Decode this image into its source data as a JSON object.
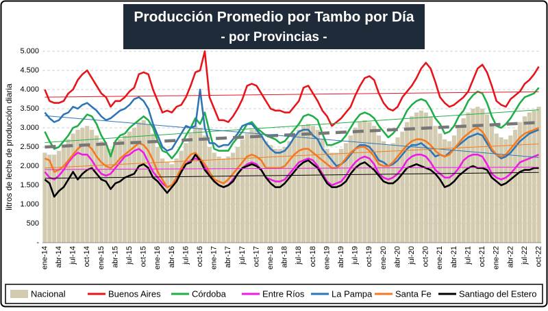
{
  "chart_data": {
    "type": "combo",
    "title": "Producción Promedio por Tambo por Día",
    "subtitle": "- por Provincias -",
    "y_label": "litros de leche de producción diaria",
    "ylim": [
      0,
      5000
    ],
    "yticks": [
      {
        "value": 0,
        "label": "-"
      },
      {
        "value": 500,
        "label": "500"
      },
      {
        "value": 1000,
        "label": "1.000"
      },
      {
        "value": 1500,
        "label": "1.500"
      },
      {
        "value": 2000,
        "label": "2.000"
      },
      {
        "value": 2500,
        "label": "2.500"
      },
      {
        "value": 3000,
        "label": "3.000"
      },
      {
        "value": 3500,
        "label": "3.500"
      },
      {
        "value": 4000,
        "label": "4.000"
      },
      {
        "value": 4500,
        "label": "4.500"
      },
      {
        "value": 5000,
        "label": "5.000"
      }
    ],
    "grid": true,
    "trendlines": true,
    "legend": "bottom",
    "categories": [
      "ene-14",
      null,
      null,
      "abr-14",
      null,
      null,
      "jul-14",
      null,
      null,
      "oct-14",
      null,
      null,
      "ene-15",
      null,
      null,
      "abr-15",
      null,
      null,
      "jul-15",
      null,
      null,
      "oct-15",
      null,
      null,
      "ene-16",
      null,
      null,
      "abr-16",
      null,
      null,
      "jul-16",
      null,
      null,
      "oct-16",
      null,
      null,
      "ene-17",
      null,
      null,
      "abr-17",
      null,
      null,
      "jul-17",
      null,
      null,
      "oct-17",
      null,
      null,
      "ene-18",
      null,
      null,
      "abr-18",
      null,
      null,
      "jul-18",
      null,
      null,
      "oct-18",
      null,
      null,
      "ene-19",
      null,
      null,
      "abr-19",
      null,
      null,
      "jul-19",
      null,
      null,
      "oct-19",
      null,
      null,
      "ene-20",
      null,
      null,
      "abr-20",
      null,
      null,
      "jul-20",
      null,
      null,
      "oct-20",
      null,
      null,
      "ene-21",
      null,
      null,
      "abr-21",
      null,
      null,
      "jul-21",
      null,
      null,
      "oct-21",
      null,
      null,
      "ene-22",
      null,
      null,
      "abr-22",
      null,
      null,
      "jul-22",
      null,
      null,
      "oct-22"
    ],
    "series": [
      {
        "name": "Nacional",
        "type": "bar",
        "color": "#d3cbb0",
        "trend_color": "#777777",
        "values": [
          2350,
          2300,
          2300,
          2400,
          2550,
          2700,
          2850,
          2950,
          3000,
          3050,
          2950,
          2800,
          2650,
          2550,
          2450,
          2550,
          2700,
          2800,
          2900,
          3000,
          3150,
          3200,
          3100,
          2850,
          2500,
          2200,
          2100,
          2050,
          2200,
          2400,
          2600,
          2850,
          3050,
          3000,
          2800,
          2500,
          2350,
          2250,
          2200,
          2250,
          2350,
          2500,
          2700,
          2850,
          2950,
          2950,
          2850,
          2650,
          2550,
          2450,
          2450,
          2500,
          2650,
          2800,
          2950,
          3050,
          3100,
          3050,
          2950,
          2700,
          2450,
          2350,
          2350,
          2450,
          2600,
          2800,
          3000,
          3150,
          3200,
          3150,
          3050,
          2800,
          2650,
          2550,
          2600,
          2750,
          2900,
          3150,
          3300,
          3400,
          3450,
          3400,
          3300,
          3050,
          2850,
          2700,
          2650,
          2800,
          3000,
          3250,
          3400,
          3500,
          3550,
          3500,
          3350,
          3100,
          2850,
          2750,
          2700,
          2800,
          2950,
          3150,
          3300,
          3400,
          3450,
          3550
        ]
      },
      {
        "name": "Buenos Aires",
        "type": "line",
        "color": "#e8141b",
        "values": [
          4000,
          3700,
          3650,
          3650,
          3700,
          3900,
          4000,
          4250,
          4400,
          4500,
          4300,
          4100,
          3900,
          3800,
          3550,
          3700,
          3700,
          3800,
          3950,
          4050,
          4400,
          4450,
          4400,
          4000,
          3700,
          3400,
          3450,
          3400,
          3550,
          3600,
          3800,
          4100,
          4450,
          4500,
          5000,
          3800,
          3500,
          3200,
          3200,
          3150,
          3300,
          3500,
          3750,
          4100,
          4150,
          4100,
          3900,
          3700,
          3500,
          3450,
          3450,
          3400,
          3400,
          3550,
          3700,
          4050,
          4100,
          3900,
          3700,
          3450,
          3300,
          3050,
          3150,
          3250,
          3400,
          3550,
          3850,
          4100,
          4300,
          4350,
          4250,
          3900,
          3650,
          3500,
          3450,
          3550,
          3800,
          3950,
          4100,
          4300,
          4550,
          4700,
          4550,
          4200,
          3800,
          3650,
          3550,
          3600,
          3700,
          3800,
          3950,
          4250,
          4550,
          4650,
          4450,
          4100,
          3700,
          3600,
          3550,
          3750,
          3850,
          3950,
          4150,
          4250,
          4400,
          4600
        ]
      },
      {
        "name": "Córdoba",
        "type": "line",
        "color": "#1fae48",
        "values": [
          2900,
          2650,
          2450,
          2500,
          2650,
          2800,
          3000,
          3050,
          3200,
          3350,
          3300,
          3100,
          2800,
          2600,
          2250,
          2650,
          2800,
          2850,
          3000,
          3100,
          3200,
          3300,
          3200,
          3000,
          2650,
          2400,
          2350,
          2200,
          2350,
          2550,
          2800,
          3000,
          3250,
          3100,
          3400,
          2900,
          2450,
          2400,
          2400,
          2400,
          2600,
          2750,
          2900,
          3100,
          3150,
          3000,
          2900,
          2800,
          2750,
          2700,
          2600,
          2650,
          2800,
          2950,
          3100,
          3300,
          3350,
          3300,
          3200,
          2850,
          2550,
          2550,
          2600,
          2650,
          2800,
          3000,
          3200,
          3350,
          3400,
          3350,
          3250,
          3050,
          2900,
          2750,
          2850,
          3000,
          3200,
          3450,
          3600,
          3700,
          3750,
          3700,
          3500,
          3250,
          3100,
          2850,
          2900,
          3050,
          3300,
          3450,
          3700,
          3850,
          3950,
          3900,
          3650,
          3300,
          3050,
          3000,
          3100,
          3250,
          3450,
          3650,
          3800,
          3850,
          3900,
          4050
        ]
      },
      {
        "name": "Entre Ríos",
        "type": "line",
        "color": "#ee1be6",
        "values": [
          1850,
          1700,
          1650,
          1750,
          1900,
          2100,
          2250,
          2350,
          2300,
          2300,
          2150,
          1950,
          1800,
          1750,
          1800,
          1950,
          2100,
          2250,
          2300,
          2400,
          2450,
          2350,
          2100,
          1850,
          1700,
          1550,
          1450,
          1500,
          1650,
          1850,
          2050,
          2150,
          2200,
          2150,
          2000,
          1750,
          1600,
          1500,
          1450,
          1500,
          1650,
          1800,
          1950,
          2050,
          2100,
          2050,
          1900,
          1700,
          1650,
          1600,
          1600,
          1650,
          1800,
          1950,
          2100,
          2150,
          2200,
          2150,
          2000,
          1800,
          1600,
          1500,
          1550,
          1600,
          1750,
          1950,
          2100,
          2200,
          2250,
          2200,
          2050,
          1800,
          1700,
          1650,
          1700,
          1800,
          1950,
          2150,
          2250,
          2300,
          2300,
          2250,
          2100,
          1900,
          1800,
          1700,
          1700,
          1800,
          1950,
          2150,
          2250,
          2300,
          2300,
          2250,
          2050,
          1800,
          1700,
          1650,
          1700,
          1800,
          1950,
          2100,
          2150,
          2200,
          2250,
          2300
        ]
      },
      {
        "name": "La Pampa",
        "type": "line",
        "color": "#2e75b6",
        "values": [
          3400,
          3250,
          3150,
          3200,
          3350,
          3400,
          3550,
          3500,
          3600,
          3650,
          3550,
          3450,
          3300,
          3200,
          3250,
          3350,
          3450,
          3500,
          3600,
          3750,
          3800,
          3700,
          3500,
          3100,
          2800,
          2500,
          2400,
          2450,
          2650,
          2850,
          3050,
          3000,
          3050,
          4000,
          3000,
          2600,
          2600,
          2500,
          2550,
          2550,
          2700,
          2850,
          3050,
          3100,
          3100,
          2950,
          2800,
          2600,
          2450,
          2350,
          2350,
          2400,
          2550,
          2750,
          2900,
          2950,
          2950,
          2800,
          2700,
          2450,
          2300,
          2150,
          2000,
          2050,
          2150,
          2300,
          2450,
          2550,
          2550,
          2500,
          2350,
          2150,
          2100,
          2000,
          2050,
          2150,
          2300,
          2450,
          2550,
          2550,
          2600,
          2500,
          2400,
          2250,
          2300,
          2250,
          2350,
          2450,
          2550,
          2650,
          2750,
          2800,
          2850,
          2800,
          2600,
          2400,
          2300,
          2200,
          2250,
          2350,
          2500,
          2650,
          2750,
          2850,
          2900,
          2950
        ]
      },
      {
        "name": "Santa Fe",
        "type": "line",
        "color": "#f47a1f",
        "values": [
          2200,
          2150,
          1850,
          1900,
          2000,
          2150,
          2300,
          2450,
          2550,
          2550,
          2450,
          2250,
          2100,
          2000,
          1950,
          2050,
          2200,
          2300,
          2400,
          2500,
          2600,
          2550,
          2400,
          2150,
          1850,
          1650,
          1450,
          1500,
          1700,
          1950,
          2150,
          2300,
          2350,
          2200,
          2050,
          1850,
          1650,
          1600,
          1550,
          1650,
          1800,
          1950,
          2100,
          2250,
          2300,
          2250,
          2150,
          1950,
          1950,
          1950,
          1950,
          2000,
          2150,
          2300,
          2400,
          2450,
          2450,
          2350,
          2250,
          2150,
          2050,
          1950,
          1950,
          2050,
          2200,
          2350,
          2450,
          2500,
          2500,
          2400,
          2250,
          2050,
          2000,
          2000,
          2100,
          2250,
          2400,
          2550,
          2650,
          2700,
          2700,
          2650,
          2550,
          2400,
          2300,
          2250,
          2300,
          2450,
          2600,
          2750,
          2850,
          2950,
          3000,
          2900,
          2700,
          2450,
          2300,
          2250,
          2300,
          2450,
          2600,
          2750,
          2850,
          2900,
          2950,
          3000
        ]
      },
      {
        "name": "Santiago del Estero",
        "type": "line",
        "color": "#000000",
        "values": [
          1650,
          1550,
          1200,
          1350,
          1450,
          1650,
          1850,
          1650,
          1800,
          1900,
          1950,
          1800,
          1650,
          1600,
          1400,
          1550,
          1600,
          1700,
          1750,
          1800,
          2000,
          2050,
          1950,
          1700,
          1600,
          1450,
          1300,
          1450,
          1600,
          1850,
          2050,
          2100,
          2300,
          2150,
          1900,
          1750,
          1600,
          1500,
          1450,
          1500,
          1600,
          1800,
          1950,
          2000,
          2050,
          2000,
          1900,
          1700,
          1550,
          1450,
          1450,
          1550,
          1700,
          1850,
          2000,
          2100,
          2150,
          2050,
          1950,
          1750,
          1550,
          1450,
          1450,
          1500,
          1600,
          1800,
          1950,
          2050,
          2100,
          2000,
          1900,
          1750,
          1600,
          1550,
          1550,
          1650,
          1800,
          1950,
          2000,
          2050,
          2000,
          1950,
          1900,
          1800,
          1650,
          1450,
          1500,
          1600,
          1750,
          1850,
          1950,
          2000,
          1950,
          1950,
          1900,
          1700,
          1600,
          1500,
          1550,
          1650,
          1750,
          1850,
          1900,
          1900,
          1950,
          1950
        ]
      }
    ]
  }
}
